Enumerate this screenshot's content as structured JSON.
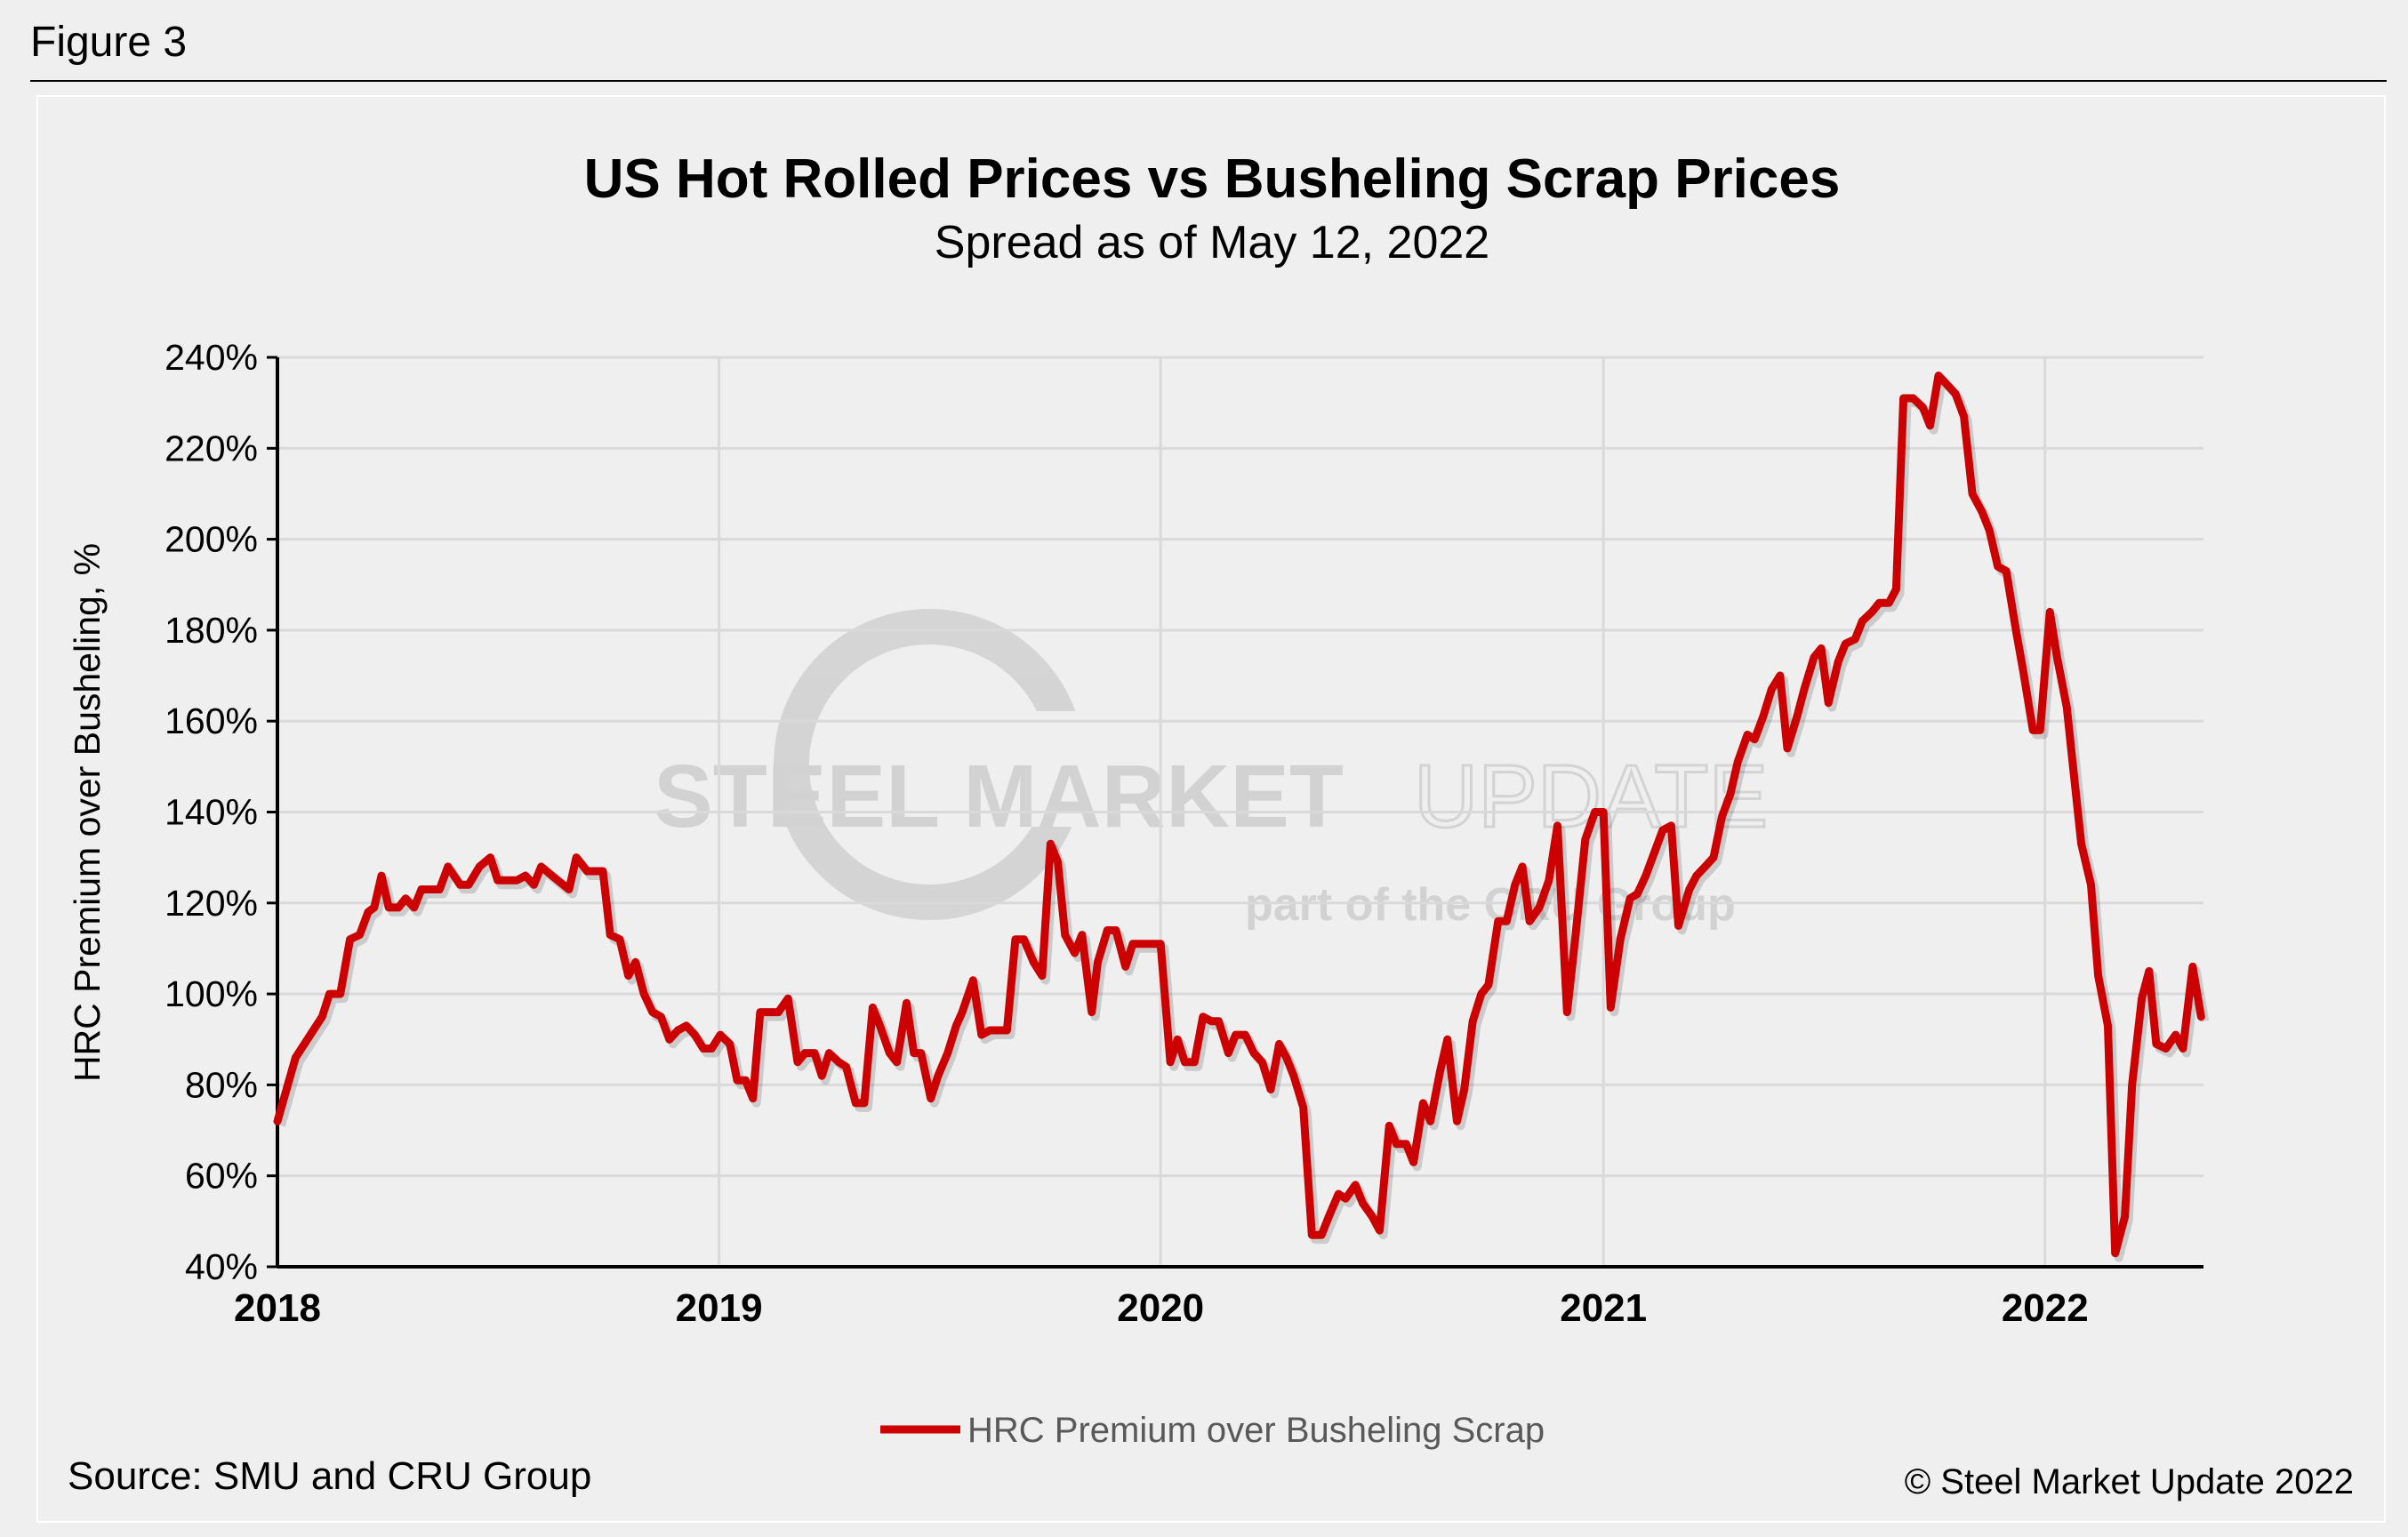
{
  "figure_label": "Figure 3",
  "source": "Source: SMU and CRU Group",
  "copyright": "© Steel Market Update 2022",
  "watermark": {
    "line1_bold": "STEEL MARKET",
    "line1_light": "UPDATE",
    "line2": "part of the CRU Group"
  },
  "colors": {
    "series": "#cc0000",
    "grid": "#d9d9d9",
    "background": "#efefef"
  },
  "chart_data": {
    "type": "line",
    "title": "US Hot Rolled Prices vs Busheling Scrap Prices",
    "subtitle": "Spread as of May 12, 2022",
    "ylabel": "HRC Premium over Busheling, %",
    "xlabel": "",
    "ylim": [
      40,
      240
    ],
    "xlim": [
      "2018-01-01",
      "2022-05-12"
    ],
    "yticks": [
      40,
      60,
      80,
      100,
      120,
      140,
      160,
      180,
      200,
      220,
      240
    ],
    "ytick_labels": [
      "40%",
      "60%",
      "80%",
      "100%",
      "120%",
      "140%",
      "160%",
      "180%",
      "200%",
      "220%",
      "240%"
    ],
    "xticks": [
      "2018-01-01",
      "2019-01-01",
      "2020-01-01",
      "2021-01-01",
      "2022-01-01"
    ],
    "xtick_labels": [
      "2018",
      "2019",
      "2020",
      "2021",
      "2022"
    ],
    "grid": true,
    "legend_position": "bottom",
    "series": [
      {
        "name": "HRC Premium over Busheling Scrap",
        "color": "#cc0000",
        "points": [
          [
            "2018-01-01",
            72
          ],
          [
            "2018-01-16",
            86
          ],
          [
            "2018-02-07",
            95
          ],
          [
            "2018-02-13",
            100
          ],
          [
            "2018-02-22",
            100
          ],
          [
            "2018-03-02",
            112
          ],
          [
            "2018-03-10",
            113
          ],
          [
            "2018-03-17",
            118
          ],
          [
            "2018-03-22",
            119
          ],
          [
            "2018-03-28",
            126
          ],
          [
            "2018-04-03",
            119
          ],
          [
            "2018-04-11",
            119
          ],
          [
            "2018-04-17",
            121
          ],
          [
            "2018-04-24",
            119
          ],
          [
            "2018-04-30",
            123
          ],
          [
            "2018-05-15",
            123
          ],
          [
            "2018-05-22",
            128
          ],
          [
            "2018-06-01",
            124
          ],
          [
            "2018-06-08",
            124
          ],
          [
            "2018-06-17",
            128
          ],
          [
            "2018-06-26",
            130
          ],
          [
            "2018-07-02",
            125
          ],
          [
            "2018-07-18",
            125
          ],
          [
            "2018-07-25",
            126
          ],
          [
            "2018-08-01",
            124
          ],
          [
            "2018-08-07",
            128
          ],
          [
            "2018-08-16",
            126
          ],
          [
            "2018-08-30",
            123
          ],
          [
            "2018-09-05",
            130
          ],
          [
            "2018-09-14",
            127
          ],
          [
            "2018-09-27",
            127
          ],
          [
            "2018-10-03",
            113
          ],
          [
            "2018-10-11",
            112
          ],
          [
            "2018-10-18",
            104
          ],
          [
            "2018-10-24",
            107
          ],
          [
            "2018-10-31",
            100
          ],
          [
            "2018-11-07",
            96
          ],
          [
            "2018-11-14",
            95
          ],
          [
            "2018-11-21",
            90
          ],
          [
            "2018-11-28",
            92
          ],
          [
            "2018-12-05",
            93
          ],
          [
            "2018-12-12",
            91
          ],
          [
            "2018-12-19",
            88
          ],
          [
            "2018-12-26",
            88
          ],
          [
            "2019-01-02",
            91
          ],
          [
            "2019-01-10",
            89
          ],
          [
            "2019-01-16",
            81
          ],
          [
            "2019-01-23",
            81
          ],
          [
            "2019-01-29",
            77
          ],
          [
            "2019-02-04",
            96
          ],
          [
            "2019-02-19",
            96
          ],
          [
            "2019-02-27",
            99
          ],
          [
            "2019-03-07",
            85
          ],
          [
            "2019-03-13",
            87
          ],
          [
            "2019-03-21",
            87
          ],
          [
            "2019-03-27",
            82
          ],
          [
            "2019-04-02",
            87
          ],
          [
            "2019-04-10",
            85
          ],
          [
            "2019-04-16",
            84
          ],
          [
            "2019-04-24",
            76
          ],
          [
            "2019-05-01",
            76
          ],
          [
            "2019-05-08",
            97
          ],
          [
            "2019-05-14",
            93
          ],
          [
            "2019-05-22",
            87
          ],
          [
            "2019-05-28",
            85
          ],
          [
            "2019-06-05",
            98
          ],
          [
            "2019-06-11",
            87
          ],
          [
            "2019-06-17",
            87
          ],
          [
            "2019-06-25",
            77
          ],
          [
            "2019-07-01",
            82
          ],
          [
            "2019-07-09",
            87
          ],
          [
            "2019-07-16",
            93
          ],
          [
            "2019-07-21",
            96
          ],
          [
            "2019-07-30",
            103
          ],
          [
            "2019-08-06",
            91
          ],
          [
            "2019-08-13",
            92
          ],
          [
            "2019-08-27",
            92
          ],
          [
            "2019-09-03",
            112
          ],
          [
            "2019-09-10",
            112
          ],
          [
            "2019-09-18",
            107
          ],
          [
            "2019-09-25",
            104
          ],
          [
            "2019-10-02",
            133
          ],
          [
            "2019-10-08",
            129
          ],
          [
            "2019-10-14",
            113
          ],
          [
            "2019-10-22",
            109
          ],
          [
            "2019-10-28",
            113
          ],
          [
            "2019-11-05",
            96
          ],
          [
            "2019-11-10",
            107
          ],
          [
            "2019-11-18",
            114
          ],
          [
            "2019-11-25",
            114
          ],
          [
            "2019-12-03",
            106
          ],
          [
            "2019-12-09",
            111
          ],
          [
            "2019-12-23",
            111
          ],
          [
            "2020-01-01",
            111
          ],
          [
            "2020-01-09",
            85
          ],
          [
            "2020-01-15",
            90
          ],
          [
            "2020-01-21",
            85
          ],
          [
            "2020-01-29",
            85
          ],
          [
            "2020-02-05",
            95
          ],
          [
            "2020-02-12",
            94
          ],
          [
            "2020-02-18",
            94
          ],
          [
            "2020-02-26",
            87
          ],
          [
            "2020-03-03",
            91
          ],
          [
            "2020-03-11",
            91
          ],
          [
            "2020-03-18",
            87
          ],
          [
            "2020-03-25",
            85
          ],
          [
            "2020-04-01",
            79
          ],
          [
            "2020-04-08",
            89
          ],
          [
            "2020-04-14",
            86
          ],
          [
            "2020-04-20",
            82
          ],
          [
            "2020-04-28",
            75
          ],
          [
            "2020-05-05",
            47
          ],
          [
            "2020-05-13",
            47
          ],
          [
            "2020-05-19",
            51
          ],
          [
            "2020-05-27",
            56
          ],
          [
            "2020-06-02",
            55
          ],
          [
            "2020-06-10",
            58
          ],
          [
            "2020-06-16",
            54
          ],
          [
            "2020-06-24",
            51
          ],
          [
            "2020-06-30",
            48
          ],
          [
            "2020-07-08",
            71
          ],
          [
            "2020-07-14",
            67
          ],
          [
            "2020-07-22",
            67
          ],
          [
            "2020-07-28",
            63
          ],
          [
            "2020-08-05",
            76
          ],
          [
            "2020-08-11",
            72
          ],
          [
            "2020-08-19",
            83
          ],
          [
            "2020-08-25",
            90
          ],
          [
            "2020-09-02",
            72
          ],
          [
            "2020-09-08",
            79
          ],
          [
            "2020-09-15",
            94
          ],
          [
            "2020-09-22",
            100
          ],
          [
            "2020-09-28",
            102
          ],
          [
            "2020-10-06",
            116
          ],
          [
            "2020-10-13",
            116
          ],
          [
            "2020-10-20",
            124
          ],
          [
            "2020-10-26",
            128
          ],
          [
            "2020-11-01",
            116
          ],
          [
            "2020-11-09",
            119
          ],
          [
            "2020-11-17",
            125
          ],
          [
            "2020-11-24",
            137
          ],
          [
            "2020-12-02",
            96
          ],
          [
            "2020-12-09",
            113
          ],
          [
            "2020-12-17",
            134
          ],
          [
            "2020-12-25",
            140
          ],
          [
            "2021-01-01",
            140
          ],
          [
            "2021-01-07",
            97
          ],
          [
            "2021-01-15",
            112
          ],
          [
            "2021-01-23",
            121
          ],
          [
            "2021-01-29",
            122
          ],
          [
            "2021-02-05",
            126
          ],
          [
            "2021-02-12",
            131
          ],
          [
            "2021-02-19",
            136
          ],
          [
            "2021-02-26",
            137
          ],
          [
            "2021-03-04",
            115
          ],
          [
            "2021-03-13",
            123
          ],
          [
            "2021-03-19",
            126
          ],
          [
            "2021-03-26",
            128
          ],
          [
            "2021-04-02",
            130
          ],
          [
            "2021-04-09",
            139
          ],
          [
            "2021-04-16",
            144
          ],
          [
            "2021-04-22",
            151
          ],
          [
            "2021-04-30",
            157
          ],
          [
            "2021-05-06",
            156
          ],
          [
            "2021-05-13",
            161
          ],
          [
            "2021-05-20",
            167
          ],
          [
            "2021-05-27",
            170
          ],
          [
            "2021-06-02",
            154
          ],
          [
            "2021-06-10",
            161
          ],
          [
            "2021-06-16",
            167
          ],
          [
            "2021-06-24",
            174
          ],
          [
            "2021-06-30",
            176
          ],
          [
            "2021-07-06",
            164
          ],
          [
            "2021-07-14",
            173
          ],
          [
            "2021-07-20",
            177
          ],
          [
            "2021-07-28",
            178
          ],
          [
            "2021-08-03",
            182
          ],
          [
            "2021-08-11",
            184
          ],
          [
            "2021-08-17",
            186
          ],
          [
            "2021-08-25",
            186
          ],
          [
            "2021-08-31",
            189
          ],
          [
            "2021-09-06",
            231
          ],
          [
            "2021-09-14",
            231
          ],
          [
            "2021-09-22",
            229
          ],
          [
            "2021-09-28",
            225
          ],
          [
            "2021-10-05",
            236
          ],
          [
            "2021-10-12",
            234
          ],
          [
            "2021-10-19",
            232
          ],
          [
            "2021-10-26",
            227
          ],
          [
            "2021-11-02",
            210
          ],
          [
            "2021-11-10",
            206
          ],
          [
            "2021-11-16",
            202
          ],
          [
            "2021-11-23",
            194
          ],
          [
            "2021-11-30",
            193
          ],
          [
            "2021-12-08",
            180
          ],
          [
            "2021-12-14",
            171
          ],
          [
            "2021-12-22",
            158
          ],
          [
            "2021-12-28",
            158
          ],
          [
            "2022-01-05",
            184
          ],
          [
            "2022-01-11",
            174
          ],
          [
            "2022-01-19",
            163
          ],
          [
            "2022-01-25",
            148
          ],
          [
            "2022-01-31",
            133
          ],
          [
            "2022-02-08",
            124
          ],
          [
            "2022-02-14",
            104
          ],
          [
            "2022-02-22",
            93
          ],
          [
            "2022-02-28",
            43
          ],
          [
            "2022-03-08",
            51
          ],
          [
            "2022-03-14",
            80
          ],
          [
            "2022-03-22",
            99
          ],
          [
            "2022-03-28",
            105
          ],
          [
            "2022-04-03",
            89
          ],
          [
            "2022-04-11",
            88
          ],
          [
            "2022-04-19",
            91
          ],
          [
            "2022-04-25",
            88
          ],
          [
            "2022-05-03",
            106
          ],
          [
            "2022-05-10",
            95
          ]
        ]
      }
    ]
  }
}
